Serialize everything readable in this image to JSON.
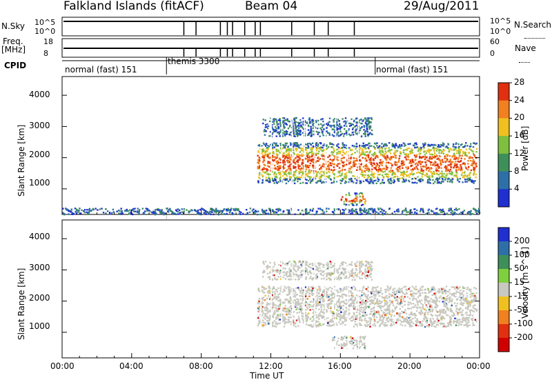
{
  "header": {
    "station": "Falkland Islands (fitACF)",
    "beam": "Beam 04",
    "date": "29/Aug/2011"
  },
  "status_panel": {
    "nsky_label": "N.Sky",
    "nsky_top_tick": "10^5",
    "nsky_bottom_tick": "10^0",
    "nsearch_label": "N.Search",
    "nsearch_top_tick": "10^5",
    "nsearch_bottom_tick": "10^0",
    "freq_label": "Freq.",
    "freq_unit": "[MHz]",
    "freq_ticks": [
      "18",
      "8"
    ],
    "nave_label": "Nave",
    "nave_ticks": [
      "60",
      "0"
    ],
    "cpid_label": "CPID",
    "cpid_segments": [
      {
        "label": "normal (fast) 151",
        "start_hour": 0,
        "end_hour": 6
      },
      {
        "label": "themis 3300",
        "start_hour": 6,
        "end_hour": 18
      },
      {
        "label": "normal (fast) 151",
        "start_hour": 18,
        "end_hour": 24
      }
    ]
  },
  "chart_data": [
    {
      "type": "heatmap",
      "name": "power",
      "ylabel": "Slant Range [km]",
      "yticks": [
        "1000",
        "2000",
        "3000",
        "4000"
      ],
      "ylim": [
        180,
        4600
      ],
      "xlim": [
        0,
        24
      ],
      "colorbar": {
        "label": "Power [dB]",
        "ticks": [
          "4",
          "8",
          "12",
          "16",
          "20",
          "24",
          "28"
        ],
        "colors": [
          "#1f2fd0",
          "#2e6fa8",
          "#3f8f5a",
          "#7fbf3f",
          "#f0c020",
          "#f08020",
          "#e03010"
        ]
      },
      "regions": [
        {
          "x": [
            11.2,
            23.8
          ],
          "y": [
            1200,
            2500
          ],
          "level": "high"
        },
        {
          "x": [
            11.5,
            17.8
          ],
          "y": [
            2700,
            3300
          ],
          "level": "low"
        },
        {
          "x": [
            16.0,
            17.4
          ],
          "y": [
            500,
            900
          ],
          "level": "high"
        },
        {
          "x": [
            0,
            24
          ],
          "y": [
            200,
            400
          ],
          "level": "low"
        }
      ]
    },
    {
      "type": "heatmap",
      "name": "velocity",
      "ylabel": "Slant Range [km]",
      "yticks": [
        "1000",
        "2000",
        "3000",
        "4000"
      ],
      "ylim": [
        180,
        4600
      ],
      "xlim": [
        0,
        24
      ],
      "xticks": [
        "00:00",
        "04:00",
        "08:00",
        "12:00",
        "16:00",
        "20:00",
        "00:00"
      ],
      "xlabel": "Time UT",
      "colorbar": {
        "label": "Velocity [m s^-1]",
        "ticks": [
          "200",
          "100",
          "50",
          "15",
          "-15",
          "-50",
          "-100",
          "-200"
        ],
        "colors": [
          "#1f2fd0",
          "#2e6fa8",
          "#3f8f5a",
          "#7fcf3f",
          "#c8c8c0",
          "#f0c020",
          "#f08020",
          "#e03010",
          "#d00000"
        ]
      },
      "regions": [
        {
          "x": [
            11.2,
            23.8
          ],
          "y": [
            1200,
            2500
          ],
          "level": "ground"
        },
        {
          "x": [
            11.5,
            17.8
          ],
          "y": [
            2700,
            3300
          ],
          "level": "ground"
        },
        {
          "x": [
            15.5,
            17.4
          ],
          "y": [
            500,
            900
          ],
          "level": "ground"
        }
      ]
    }
  ]
}
